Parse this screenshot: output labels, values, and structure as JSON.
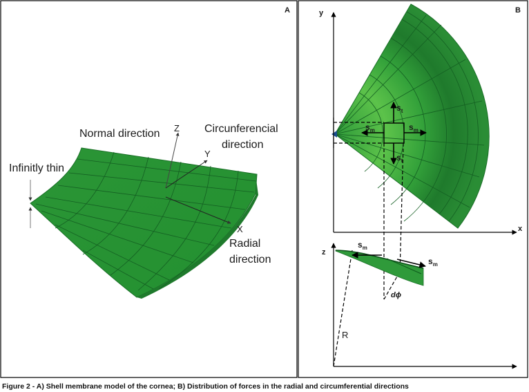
{
  "panel_a": {
    "label": "A",
    "labels": {
      "infinitely_thin": "Infinitly thin",
      "normal_direction": "Normal direction",
      "circ_line1": "Circunferencial",
      "circ_line2": "direction",
      "radial_line1": "Radial",
      "radial_line2": "direction"
    },
    "axes": {
      "z": "Z",
      "y": "Y",
      "x": "X"
    }
  },
  "panel_b": {
    "label": "B",
    "axes": {
      "y": "y",
      "x": "x",
      "z": "z"
    },
    "force_symbol": "s",
    "subscripts": {
      "meridional": "m",
      "circumferential": "t"
    },
    "angle_label": "dϕ",
    "radius_label": "R"
  },
  "caption": "Figure 2 - A) Shell membrane model of the cornea; B) Distribution of forces in the radial and circumferential directions",
  "colors": {
    "shell": "#2f9a3a",
    "shell_dark": "#1f7a2c",
    "shell_light": "#5cc24a",
    "grid": "#145f22"
  }
}
